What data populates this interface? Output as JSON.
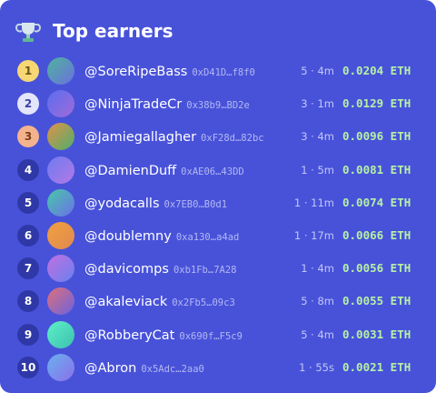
{
  "header": {
    "title": "Top earners"
  },
  "rows": [
    {
      "rank": "1",
      "name": "@SoreRipeBass",
      "address": "0xD41D…f8f0",
      "stat": "5 · 4m",
      "amount": "0.0204 ETH"
    },
    {
      "rank": "2",
      "name": "@NinjaTradeCr",
      "address": "0x38b9…BD2e",
      "stat": "3 · 1m",
      "amount": "0.0129 ETH"
    },
    {
      "rank": "3",
      "name": "@Jamiegallagher",
      "address": "0xF28d…82bc",
      "stat": "3 · 4m",
      "amount": "0.0096 ETH"
    },
    {
      "rank": "4",
      "name": "@DamienDuff",
      "address": "0xAE06…43DD",
      "stat": "1 · 5m",
      "amount": "0.0081 ETH"
    },
    {
      "rank": "5",
      "name": "@yodacalls",
      "address": "0x7EB0…B0d1",
      "stat": "1 · 11m",
      "amount": "0.0074 ETH"
    },
    {
      "rank": "6",
      "name": "@doublemny",
      "address": "0xa130…a4ad",
      "stat": "1 · 17m",
      "amount": "0.0066 ETH"
    },
    {
      "rank": "7",
      "name": "@davicomps",
      "address": "0xb1Fb…7A28",
      "stat": "1 · 4m",
      "amount": "0.0056 ETH"
    },
    {
      "rank": "8",
      "name": "@akaleviack",
      "address": "0x2Fb5…09c3",
      "stat": "5 · 8m",
      "amount": "0.0055 ETH"
    },
    {
      "rank": "9",
      "name": "@RobberyCat",
      "address": "0x690f…F5c9",
      "stat": "5 · 4m",
      "amount": "0.0031 ETH"
    },
    {
      "rank": "10",
      "name": "@Abron",
      "address": "0x5Adc…2aa0",
      "stat": "1 · 55s",
      "amount": "0.0021 ETH"
    }
  ]
}
